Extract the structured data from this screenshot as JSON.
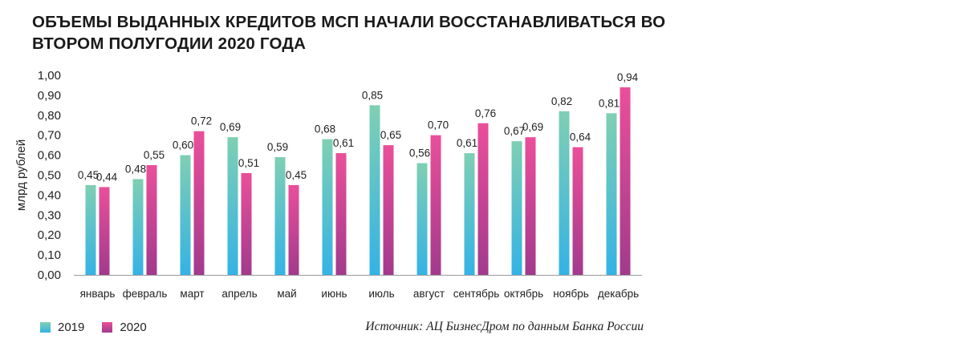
{
  "title": "ОБЪЕМЫ ВЫДАННЫХ КРЕДИТОВ МСП НАЧАЛИ ВОССТАНАВЛИВАТЬСЯ ВО ВТОРОМ ПОЛУГОДИИ 2020 ГОДА",
  "source": "Источник: АЦ БизнесДром по данным Банка России",
  "colors": {
    "series_2019_top": "#7fcfb3",
    "series_2019_bottom": "#34b3e6",
    "series_2020_top": "#ea4f9a",
    "series_2020_bottom": "#a23a8d"
  },
  "chart_data": {
    "type": "bar",
    "title": "ОБЪЕМЫ ВЫДАННЫХ КРЕДИТОВ МСП НАЧАЛИ ВОССТАНАВЛИВАТЬСЯ ВО ВТОРОМ ПОЛУГОДИИ 2020 ГОДА",
    "xlabel": "",
    "ylabel": "млрд рублей",
    "ylim": [
      0,
      1
    ],
    "yticks": [
      "0,00",
      "0,10",
      "0,20",
      "0,30",
      "0,40",
      "0,50",
      "0,60",
      "0,70",
      "0,80",
      "0,90",
      "1,00"
    ],
    "categories": [
      "январь",
      "февраль",
      "март",
      "апрель",
      "май",
      "июнь",
      "июль",
      "август",
      "сентябрь",
      "октябрь",
      "ноябрь",
      "декабрь"
    ],
    "series": [
      {
        "name": "2019",
        "values": [
          0.45,
          0.48,
          0.6,
          0.69,
          0.59,
          0.68,
          0.85,
          0.56,
          0.61,
          0.67,
          0.82,
          0.81
        ],
        "labels": [
          "0,45",
          "0,48",
          "0,60",
          "0,69",
          "0,59",
          "0,68",
          "0,85",
          "0,56",
          "0,61",
          "0,67",
          "0,82",
          "0,81"
        ]
      },
      {
        "name": "2020",
        "values": [
          0.44,
          0.55,
          0.72,
          0.51,
          0.45,
          0.61,
          0.65,
          0.7,
          0.76,
          0.69,
          0.64,
          0.94
        ],
        "labels": [
          "0,44",
          "0,55",
          "0,72",
          "0,51",
          "0,45",
          "0,61",
          "0,65",
          "0,70",
          "0,76",
          "0,69",
          "0,64",
          "0,94"
        ]
      }
    ],
    "grid": false,
    "legend_position": "bottom-left"
  }
}
